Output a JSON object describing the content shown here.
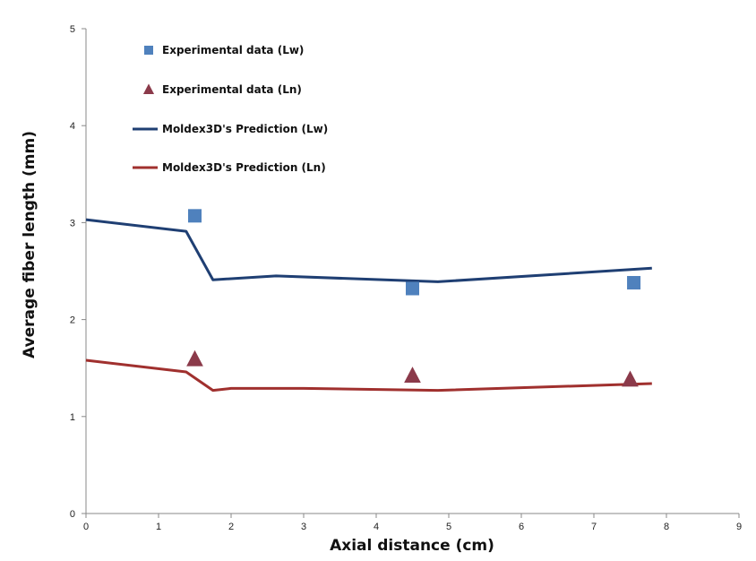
{
  "chart_data": {
    "type": "line",
    "title": "",
    "xlabel": "Axial distance  (cm)",
    "ylabel": "Average  fiber length (mm)",
    "xlim": [
      0,
      9
    ],
    "ylim": [
      0,
      5
    ],
    "xticks": [
      "0",
      "1",
      "2",
      "3",
      "4",
      "5",
      "6",
      "7",
      "8",
      "9"
    ],
    "yticks": [
      "0",
      "1",
      "2",
      "3",
      "4",
      "5"
    ],
    "grid": false,
    "legend_position": "top-left",
    "series": [
      {
        "name": "Experimental data (Lw)",
        "kind": "scatter",
        "marker": "square",
        "color": "#4f81bd",
        "x": [
          1.5,
          4.5,
          7.55
        ],
        "y": [
          3.07,
          2.32,
          2.38
        ]
      },
      {
        "name": "Experimental data (Ln)",
        "kind": "scatter",
        "marker": "triangle",
        "color": "#8b3a4a",
        "x": [
          1.5,
          4.5,
          7.5
        ],
        "y": [
          1.59,
          1.42,
          1.38
        ]
      },
      {
        "name": "Moldex3D's Prediction (Lw)",
        "kind": "line",
        "color": "#1f3f73",
        "x": [
          0,
          1.38,
          1.75,
          2.62,
          4.85,
          7.8
        ],
        "y": [
          3.03,
          2.91,
          2.41,
          2.45,
          2.39,
          2.53
        ]
      },
      {
        "name": "Moldex3D's Prediction (Ln)",
        "kind": "line",
        "color": "#a0302e",
        "x": [
          0,
          1.38,
          1.75,
          2.0,
          3.0,
          4.85,
          7.8
        ],
        "y": [
          1.58,
          1.46,
          1.27,
          1.29,
          1.29,
          1.27,
          1.34
        ]
      }
    ]
  }
}
